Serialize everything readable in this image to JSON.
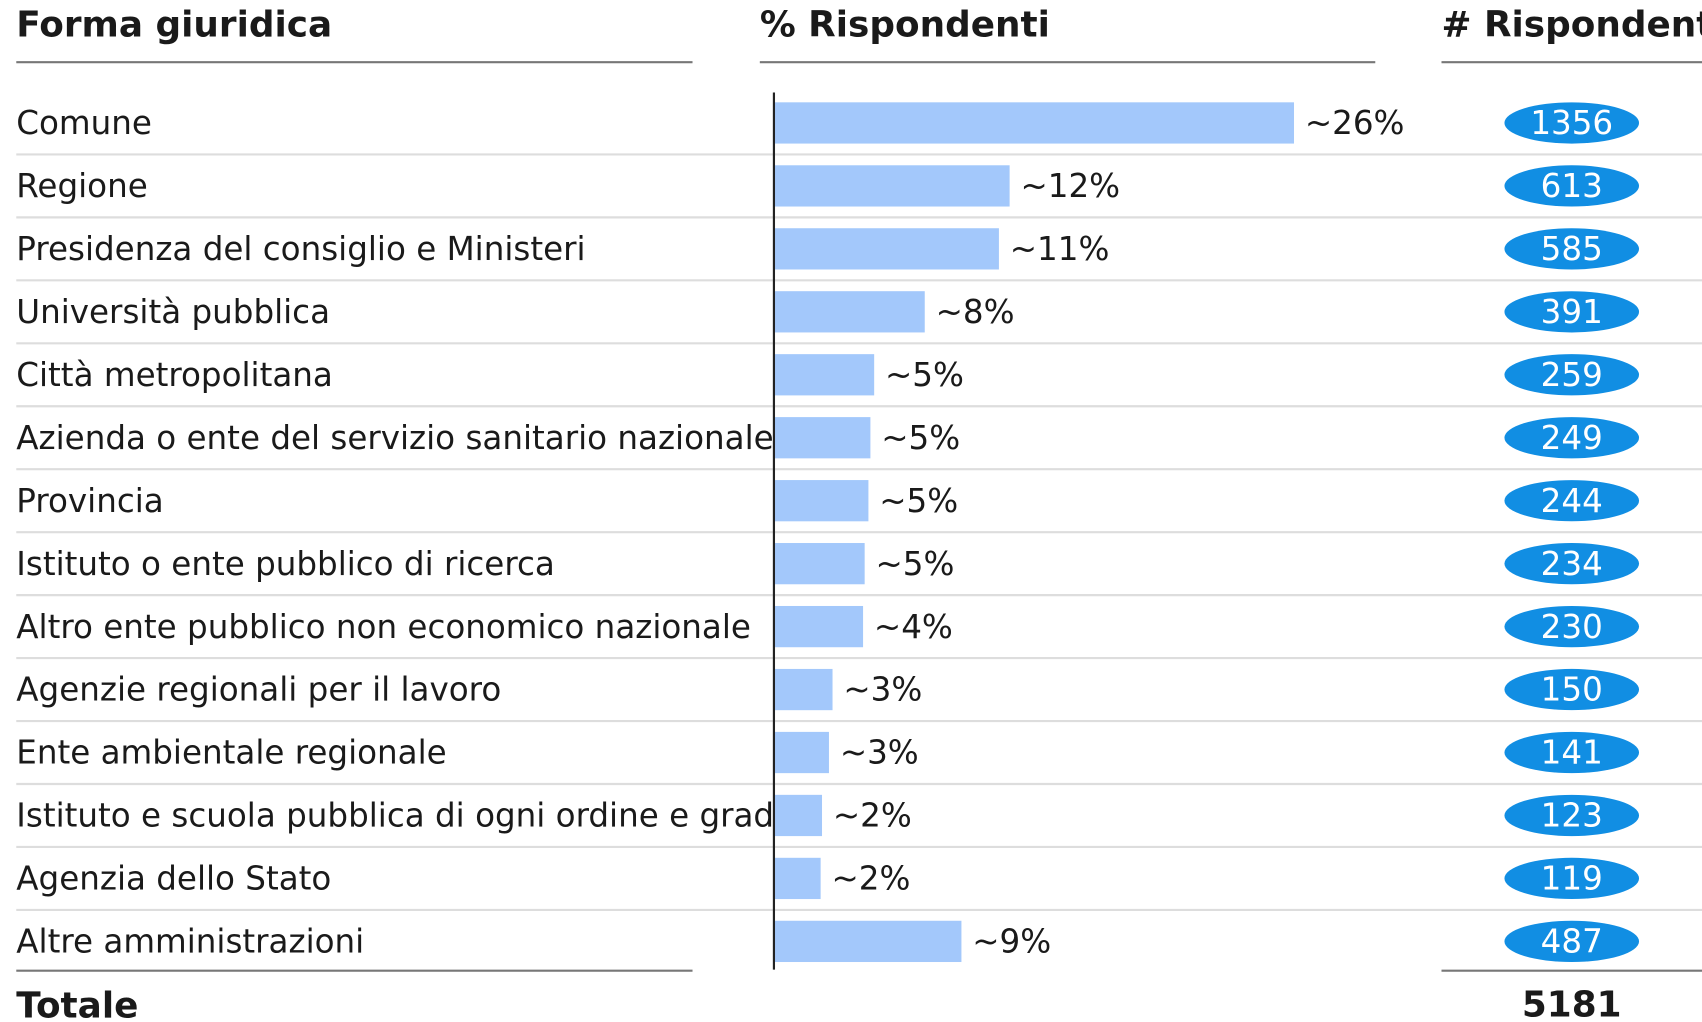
{
  "chart_data": {
    "type": "bar",
    "columns": [
      "Forma giuridica",
      "% Rispondenti",
      "# Rispondenti"
    ],
    "categories": [
      "Comune",
      "Regione",
      "Presidenza del consiglio e Ministeri",
      "Università pubblica",
      "Città metropolitana",
      "Azienda o ente del servizio sanitario nazionale",
      "Provincia",
      "Istituto o ente pubblico di ricerca",
      "Altro ente pubblico non economico nazionale",
      "Agenzie regionali per il lavoro",
      "Ente ambientale regionale",
      "Istituto e scuola pubblica di ogni ordine e grado",
      "Agenzia dello Stato",
      "Altre amministrazioni"
    ],
    "values": [
      26.17,
      11.83,
      11.29,
      7.55,
      5.0,
      4.81,
      4.71,
      4.52,
      4.44,
      2.9,
      2.72,
      2.37,
      2.3,
      9.4
    ],
    "value_labels": [
      "~26%",
      "~12%",
      "~11%",
      "~8%",
      "~5%",
      "~5%",
      "~5%",
      "~5%",
      "~4%",
      "~3%",
      "~3%",
      "~2%",
      "~2%",
      "~9%"
    ],
    "counts": [
      1356,
      613,
      585,
      391,
      259,
      249,
      244,
      234,
      230,
      150,
      141,
      123,
      119,
      487
    ],
    "color": "#a3c8fb",
    "count_color": "#118ee3",
    "total_label": "Totale",
    "total": 5181
  }
}
